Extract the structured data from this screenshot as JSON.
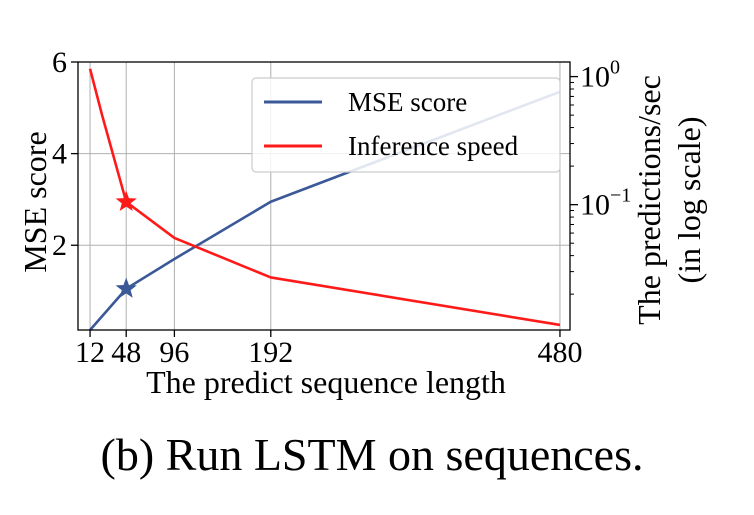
{
  "chart_data": {
    "type": "line",
    "caption": "(b) Run LSTM on sequences.",
    "xlabel": "The predict sequence length",
    "ylabel_left": "MSE score",
    "ylabel_right_line1": "The predictions/sec",
    "ylabel_right_line2": "(in log scale)",
    "x_ticks": [
      {
        "value": 12,
        "label": "12"
      },
      {
        "value": 48,
        "label": "48"
      },
      {
        "value": 96,
        "label": "96"
      },
      {
        "value": 192,
        "label": "192"
      },
      {
        "value": 480,
        "label": "480"
      }
    ],
    "y_left_ticks": [
      2,
      4,
      6
    ],
    "y_left_lim": [
      0.15,
      6
    ],
    "y_right_log": true,
    "y_right_ticks": [
      {
        "value": 1,
        "base": "10",
        "exp": "0"
      },
      {
        "value": 0.1,
        "base": "10",
        "exp": "−1"
      }
    ],
    "y_right_lim": [
      0.0105,
      1.3
    ],
    "xlim": [
      0,
      490
    ],
    "grid": true,
    "legend_position": "top-right",
    "series": [
      {
        "name": "MSE score",
        "axis": "left",
        "color": "#3B5998",
        "x": [
          12,
          48,
          96,
          192,
          480
        ],
        "y": [
          0.15,
          1.05,
          1.7,
          2.95,
          5.35
        ],
        "marker_x": 48,
        "marker_y": 1.05
      },
      {
        "name": "Inference speed",
        "axis": "right",
        "color": "#FF1A1A",
        "x": [
          12,
          24,
          48,
          96,
          192,
          480
        ],
        "y": [
          1.15,
          0.5,
          0.105,
          0.055,
          0.027,
          0.0115
        ],
        "marker_x": 48,
        "marker_y": 0.105
      }
    ]
  }
}
